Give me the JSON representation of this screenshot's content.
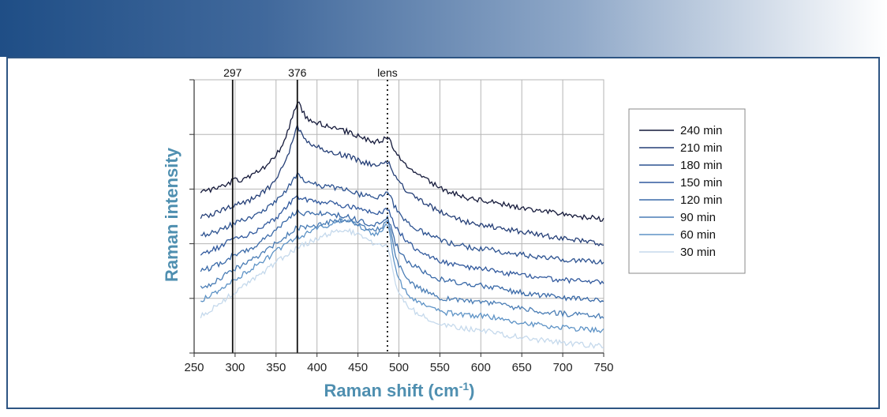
{
  "colors": {
    "header_start": "#1f4e86",
    "frame_border": "#2e5583",
    "axis_title": "#4f8fb0",
    "grid": "#b5b5b5"
  },
  "chart_data": {
    "type": "line",
    "title": "",
    "xlabel": "Raman shift (cm",
    "xlabel_sup": "-1",
    "xlabel_close": ")",
    "ylabel": "Raman intensity",
    "xlim": [
      250,
      750
    ],
    "x_ticks": [
      250,
      300,
      350,
      400,
      450,
      500,
      550,
      600,
      650,
      700,
      750
    ],
    "x_tick_labels": [
      "250",
      "300",
      "350",
      "400",
      "450",
      "500",
      "550",
      "600",
      "650",
      "700",
      "750"
    ],
    "y_ticks_unlabeled": 5,
    "grid": true,
    "legend_position": "right",
    "reference_lines": [
      {
        "x": 297,
        "label": "297",
        "style": "solid"
      },
      {
        "x": 376,
        "label": "376",
        "style": "solid"
      },
      {
        "x": 486,
        "label": "lens",
        "style": "dotted"
      }
    ],
    "series": [
      {
        "name": "240 min",
        "color": "#14193a",
        "offset": 6.6,
        "x": [
          258,
          270,
          280,
          290,
          297,
          305,
          315,
          325,
          335,
          345,
          352,
          360,
          367,
          372,
          376,
          380,
          385,
          390,
          400,
          410,
          420,
          430,
          440,
          450,
          460,
          470,
          478,
          483,
          486,
          489,
          492,
          495,
          500,
          505,
          510,
          520,
          530,
          540,
          550,
          560,
          570,
          580,
          590,
          600,
          610,
          620,
          640,
          660,
          680,
          700,
          720,
          740,
          750
        ],
        "y": [
          0.0,
          0.1,
          0.25,
          0.45,
          0.6,
          0.65,
          0.8,
          1.0,
          1.3,
          1.7,
          2.1,
          2.8,
          3.6,
          4.3,
          4.8,
          4.55,
          4.1,
          3.9,
          3.7,
          3.55,
          3.45,
          3.3,
          3.2,
          3.0,
          2.85,
          2.7,
          2.75,
          2.85,
          2.9,
          2.75,
          2.5,
          2.2,
          1.9,
          1.6,
          1.35,
          1.05,
          0.75,
          0.5,
          0.25,
          0.05,
          -0.1,
          -0.25,
          -0.4,
          -0.45,
          -0.5,
          -0.6,
          -0.75,
          -0.9,
          -1.05,
          -1.2,
          -1.3,
          -1.4,
          -1.45
        ]
      },
      {
        "name": "210 min",
        "color": "#253f77",
        "offset": 5.3,
        "x": [
          258,
          270,
          280,
          290,
          297,
          305,
          315,
          325,
          335,
          345,
          352,
          360,
          367,
          372,
          376,
          380,
          385,
          390,
          400,
          410,
          420,
          430,
          440,
          450,
          460,
          470,
          478,
          483,
          486,
          489,
          492,
          495,
          500,
          505,
          510,
          520,
          530,
          540,
          550,
          560,
          570,
          580,
          590,
          600,
          610,
          620,
          640,
          660,
          680,
          700,
          720,
          740,
          750
        ],
        "y": [
          0.0,
          0.1,
          0.25,
          0.45,
          0.6,
          0.65,
          0.8,
          1.0,
          1.3,
          1.7,
          2.1,
          2.8,
          3.6,
          4.3,
          4.8,
          4.55,
          4.1,
          3.9,
          3.7,
          3.55,
          3.45,
          3.3,
          3.2,
          3.0,
          2.85,
          2.7,
          2.75,
          2.85,
          2.9,
          2.75,
          2.5,
          2.2,
          1.9,
          1.6,
          1.35,
          1.05,
          0.75,
          0.5,
          0.25,
          0.05,
          -0.1,
          -0.25,
          -0.4,
          -0.45,
          -0.5,
          -0.6,
          -0.75,
          -0.9,
          -1.05,
          -1.2,
          -1.3,
          -1.4,
          -1.45
        ]
      },
      {
        "name": "180 min",
        "color": "#2c5290",
        "offset": 4.3,
        "x": [
          258,
          270,
          280,
          290,
          297,
          305,
          315,
          325,
          335,
          345,
          352,
          360,
          367,
          372,
          376,
          380,
          385,
          390,
          400,
          410,
          420,
          430,
          440,
          450,
          460,
          470,
          478,
          483,
          486,
          489,
          492,
          495,
          500,
          505,
          510,
          520,
          530,
          540,
          550,
          560,
          570,
          580,
          590,
          600,
          610,
          620,
          640,
          660,
          680,
          700,
          720,
          740,
          750
        ],
        "y": [
          0.0,
          0.1,
          0.25,
          0.45,
          0.6,
          0.7,
          0.85,
          1.05,
          1.3,
          1.6,
          1.9,
          2.3,
          2.7,
          3.0,
          3.2,
          3.05,
          2.9,
          2.8,
          2.7,
          2.6,
          2.55,
          2.45,
          2.35,
          2.2,
          2.1,
          2.0,
          2.05,
          2.15,
          2.2,
          2.05,
          1.8,
          1.5,
          1.2,
          0.9,
          0.7,
          0.4,
          0.15,
          -0.05,
          -0.25,
          -0.4,
          -0.5,
          -0.6,
          -0.7,
          -0.72,
          -0.75,
          -0.85,
          -1.0,
          -1.1,
          -1.2,
          -1.3,
          -1.35,
          -1.4,
          -1.45
        ]
      },
      {
        "name": "150 min",
        "color": "#31599d",
        "offset": 3.3,
        "x": [
          258,
          270,
          280,
          290,
          297,
          305,
          315,
          325,
          335,
          345,
          352,
          360,
          367,
          372,
          376,
          380,
          385,
          390,
          400,
          410,
          420,
          430,
          440,
          450,
          460,
          470,
          478,
          483,
          486,
          489,
          492,
          495,
          500,
          505,
          510,
          520,
          530,
          540,
          550,
          560,
          570,
          580,
          590,
          600,
          610,
          620,
          640,
          660,
          680,
          700,
          720,
          740,
          750
        ],
        "y": [
          0.0,
          0.15,
          0.35,
          0.6,
          0.75,
          0.85,
          1.0,
          1.2,
          1.45,
          1.75,
          2.0,
          2.35,
          2.7,
          2.95,
          3.1,
          3.0,
          2.9,
          2.85,
          2.8,
          2.75,
          2.7,
          2.6,
          2.5,
          2.4,
          2.3,
          2.2,
          2.25,
          2.35,
          2.4,
          2.2,
          1.9,
          1.55,
          1.2,
          0.9,
          0.65,
          0.3,
          0.05,
          -0.15,
          -0.35,
          -0.5,
          -0.6,
          -0.7,
          -0.8,
          -0.8,
          -0.85,
          -0.95,
          -1.1,
          -1.2,
          -1.3,
          -1.4,
          -1.45,
          -1.5,
          -1.55
        ]
      },
      {
        "name": "120 min",
        "color": "#3a6aa8",
        "offset": 2.4,
        "x": [
          258,
          270,
          280,
          290,
          297,
          305,
          315,
          325,
          335,
          345,
          352,
          360,
          367,
          372,
          376,
          380,
          385,
          390,
          400,
          410,
          420,
          430,
          440,
          450,
          460,
          470,
          478,
          483,
          486,
          489,
          492,
          495,
          500,
          505,
          510,
          520,
          530,
          540,
          550,
          560,
          570,
          580,
          590,
          600,
          610,
          620,
          640,
          660,
          680,
          700,
          720,
          740,
          750
        ],
        "y": [
          0.0,
          0.15,
          0.35,
          0.6,
          0.8,
          0.9,
          1.1,
          1.35,
          1.65,
          2.0,
          2.25,
          2.55,
          2.85,
          3.05,
          3.15,
          3.1,
          3.05,
          3.05,
          3.05,
          3.05,
          3.0,
          2.95,
          2.85,
          2.7,
          2.55,
          2.4,
          2.5,
          2.7,
          2.8,
          2.5,
          2.0,
          1.55,
          1.1,
          0.75,
          0.5,
          0.2,
          -0.05,
          -0.25,
          -0.45,
          -0.55,
          -0.6,
          -0.7,
          -0.8,
          -0.8,
          -0.85,
          -0.95,
          -1.1,
          -1.25,
          -1.35,
          -1.45,
          -1.5,
          -1.55,
          -1.6
        ]
      },
      {
        "name": "90 min",
        "color": "#4a7db5",
        "offset": 1.5,
        "x": [
          258,
          270,
          280,
          290,
          297,
          305,
          315,
          325,
          335,
          345,
          352,
          360,
          367,
          372,
          376,
          380,
          385,
          390,
          400,
          410,
          420,
          430,
          440,
          450,
          460,
          470,
          478,
          483,
          486,
          489,
          492,
          495,
          500,
          505,
          510,
          520,
          530,
          540,
          550,
          560,
          570,
          580,
          590,
          600,
          610,
          620,
          640,
          660,
          680,
          700,
          720,
          740,
          750
        ],
        "y": [
          0.0,
          0.2,
          0.45,
          0.75,
          0.95,
          1.1,
          1.35,
          1.6,
          1.9,
          2.2,
          2.45,
          2.7,
          2.95,
          3.1,
          3.2,
          3.2,
          3.2,
          3.25,
          3.35,
          3.45,
          3.55,
          3.6,
          3.55,
          3.4,
          3.2,
          3.05,
          3.15,
          3.45,
          3.6,
          3.2,
          2.5,
          1.8,
          1.2,
          0.75,
          0.45,
          0.1,
          -0.15,
          -0.35,
          -0.55,
          -0.6,
          -0.65,
          -0.7,
          -0.75,
          -0.75,
          -0.8,
          -0.9,
          -1.05,
          -1.2,
          -1.3,
          -1.4,
          -1.45,
          -1.5,
          -1.55
        ]
      },
      {
        "name": "60 min",
        "color": "#5e93c6",
        "offset": 0.8,
        "x": [
          258,
          270,
          280,
          290,
          297,
          305,
          315,
          325,
          335,
          345,
          352,
          360,
          367,
          372,
          376,
          380,
          385,
          390,
          400,
          410,
          420,
          430,
          440,
          450,
          460,
          470,
          478,
          483,
          486,
          489,
          492,
          495,
          500,
          505,
          510,
          520,
          530,
          540,
          550,
          560,
          570,
          580,
          590,
          600,
          610,
          620,
          640,
          660,
          680,
          700,
          720,
          740,
          750
        ],
        "y": [
          0.0,
          0.25,
          0.5,
          0.85,
          1.1,
          1.3,
          1.55,
          1.85,
          2.15,
          2.45,
          2.7,
          2.95,
          3.15,
          3.3,
          3.4,
          3.45,
          3.55,
          3.65,
          3.85,
          4.0,
          4.15,
          4.25,
          4.2,
          4.0,
          3.75,
          3.5,
          3.6,
          3.95,
          4.1,
          3.6,
          2.7,
          1.85,
          1.15,
          0.7,
          0.4,
          0.05,
          -0.2,
          -0.4,
          -0.6,
          -0.65,
          -0.7,
          -0.75,
          -0.8,
          -0.8,
          -0.85,
          -0.95,
          -1.1,
          -1.25,
          -1.35,
          -1.45,
          -1.5,
          -1.55,
          -1.6
        ]
      },
      {
        "name": "30 min",
        "color": "#c5d9ec",
        "offset": 0.0,
        "x": [
          258,
          270,
          280,
          290,
          297,
          305,
          315,
          325,
          335,
          345,
          352,
          360,
          367,
          372,
          376,
          380,
          385,
          390,
          400,
          410,
          420,
          430,
          440,
          450,
          460,
          470,
          478,
          483,
          486,
          489,
          492,
          495,
          500,
          505,
          510,
          520,
          530,
          540,
          550,
          560,
          570,
          580,
          590,
          600,
          610,
          620,
          640,
          660,
          680,
          700,
          720,
          740,
          750
        ],
        "y": [
          0.0,
          0.3,
          0.6,
          0.95,
          1.2,
          1.45,
          1.75,
          2.05,
          2.35,
          2.65,
          2.9,
          3.15,
          3.35,
          3.5,
          3.6,
          3.7,
          3.8,
          3.9,
          4.1,
          4.3,
          4.45,
          4.55,
          4.5,
          4.35,
          4.1,
          3.8,
          3.75,
          3.8,
          3.75,
          3.3,
          2.6,
          1.9,
          1.3,
          0.85,
          0.55,
          0.2,
          -0.05,
          -0.25,
          -0.45,
          -0.55,
          -0.6,
          -0.7,
          -0.75,
          -0.8,
          -0.85,
          -0.95,
          -1.1,
          -1.25,
          -1.35,
          -1.45,
          -1.55,
          -1.6,
          -1.65
        ]
      }
    ]
  }
}
